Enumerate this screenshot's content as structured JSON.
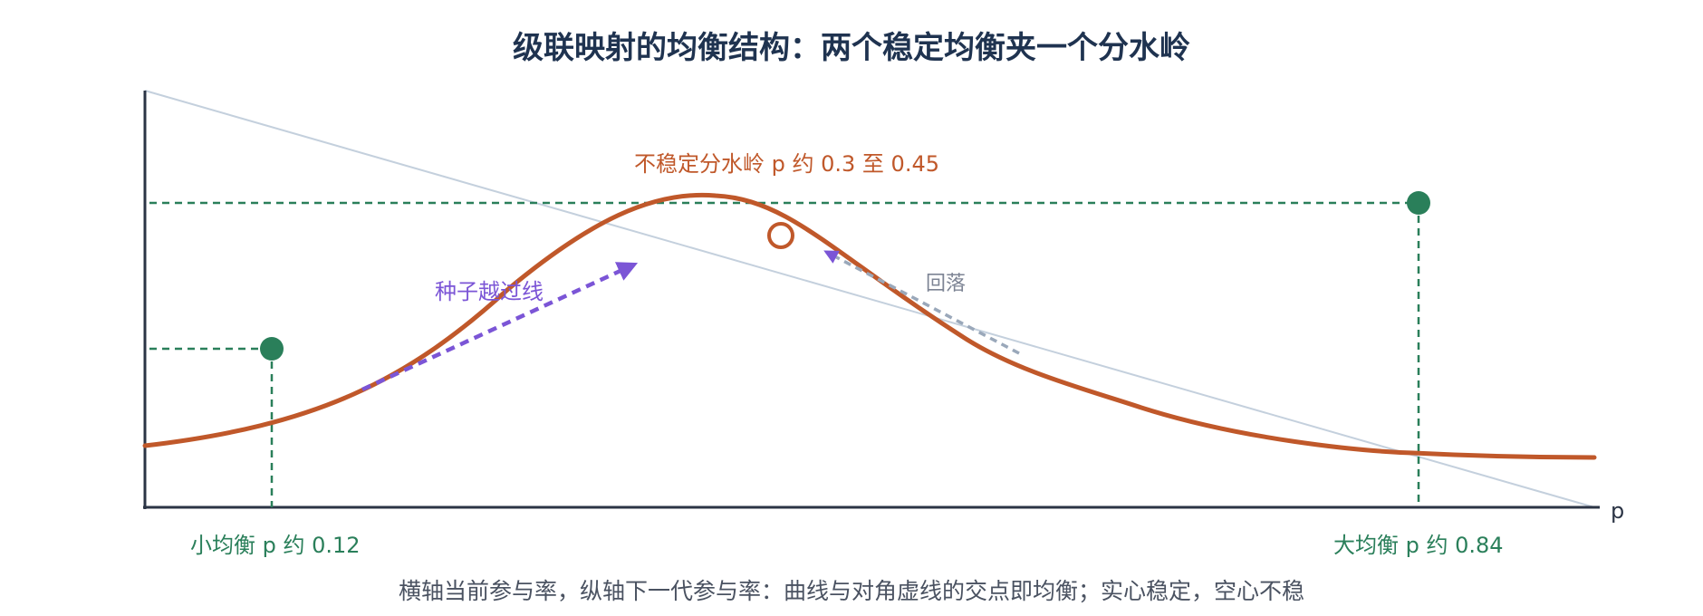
{
  "title": "级联映射的均衡结构：两个稳定均衡夹一个分水岭",
  "x_axis_label": "p",
  "labels": {
    "unstable": "不稳定分水岭 p 约 0.3 至 0.45",
    "seed": "种子越过线",
    "fallback": "回落",
    "small_eq": "小均衡 p 约 0.12",
    "large_eq": "大均衡 p 约 0.84"
  },
  "caption": "横轴当前参与率，纵轴下一代参与率：曲线与对角虚线的交点即均衡；实心稳定，空心不稳",
  "colors": {
    "title": "#1f3350",
    "axis": "#2b3445",
    "curve": "#c0582a",
    "diagonal": "#c4d0dd",
    "stable": "#2a7f5a",
    "seed_arrow": "#7b55d6",
    "fallback_arrow": "#9aa8ba",
    "caption": "#4a5261"
  }
}
